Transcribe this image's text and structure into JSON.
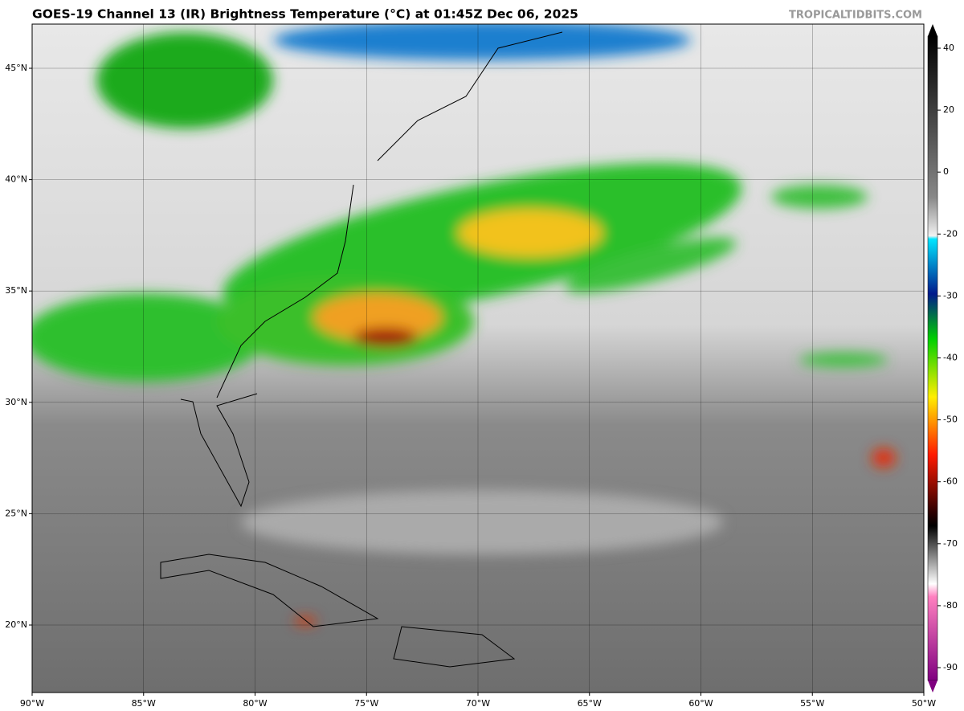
{
  "header": {
    "title": "GOES-19 Channel 13 (IR) Brightness Temperature (°C) at 01:45Z Dec 06, 2025",
    "credit": "TROPICALTIDBITS.COM"
  },
  "map": {
    "lon_labels": [
      "90°W",
      "85°W",
      "80°W",
      "75°W",
      "70°W",
      "65°W",
      "60°W",
      "55°W",
      "50°W"
    ],
    "lat_labels": [
      "45°N",
      "40°N",
      "35°N",
      "30°N",
      "25°N",
      "20°N"
    ]
  },
  "colorbar": {
    "ticks": [
      40,
      20,
      0,
      -20,
      -30,
      -40,
      -50,
      -60,
      -70,
      -80,
      -90
    ]
  }
}
